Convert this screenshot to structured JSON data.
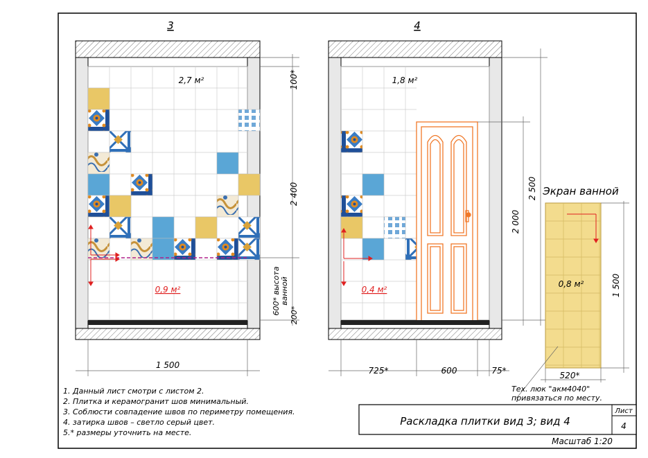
{
  "views": [
    {
      "number": "3",
      "area_upper": "2,7 м²",
      "area_lower": "0,9 м²"
    },
    {
      "number": "4",
      "area_upper": "1,8 м²",
      "area_lower": "0,4 м²"
    }
  ],
  "screen": {
    "title": "Экран ванной",
    "area": "0,8 м²"
  },
  "dimensions": {
    "d100": "100*",
    "d2400": "2 400",
    "d600": "600* высота ванной",
    "d200": "200*",
    "d1500_width": "1 500",
    "d2500": "2 500",
    "d2000": "2 000",
    "d725": "725*",
    "d600_door": "600",
    "d75": "75*",
    "d1500_screen": "1 500",
    "d520": "520*"
  },
  "hatch_note": {
    "line1": "Тех. люк \"акм4040\"",
    "line2": "привязаться по месту."
  },
  "notes": [
    "1. Данный лист смотри с листом 2.",
    "2. Плитка и керамогранит шов минимальный.",
    "3. Соблюсти совпадение швов по периметру помещения.",
    "4. затирка швов – светло серый цвет.",
    "5.* размеры уточнить на месте."
  ],
  "title_block": {
    "title": "Раскладка плитки вид 3;  вид 4",
    "sheet_label": "Лист",
    "sheet_number": "4",
    "scale": "Масштаб 1:20"
  },
  "colors": {
    "yellow_tile": "#e9c766",
    "blue_tile": "#5aa6d6",
    "dimension_red": "#e02020",
    "door": "#f07828"
  }
}
